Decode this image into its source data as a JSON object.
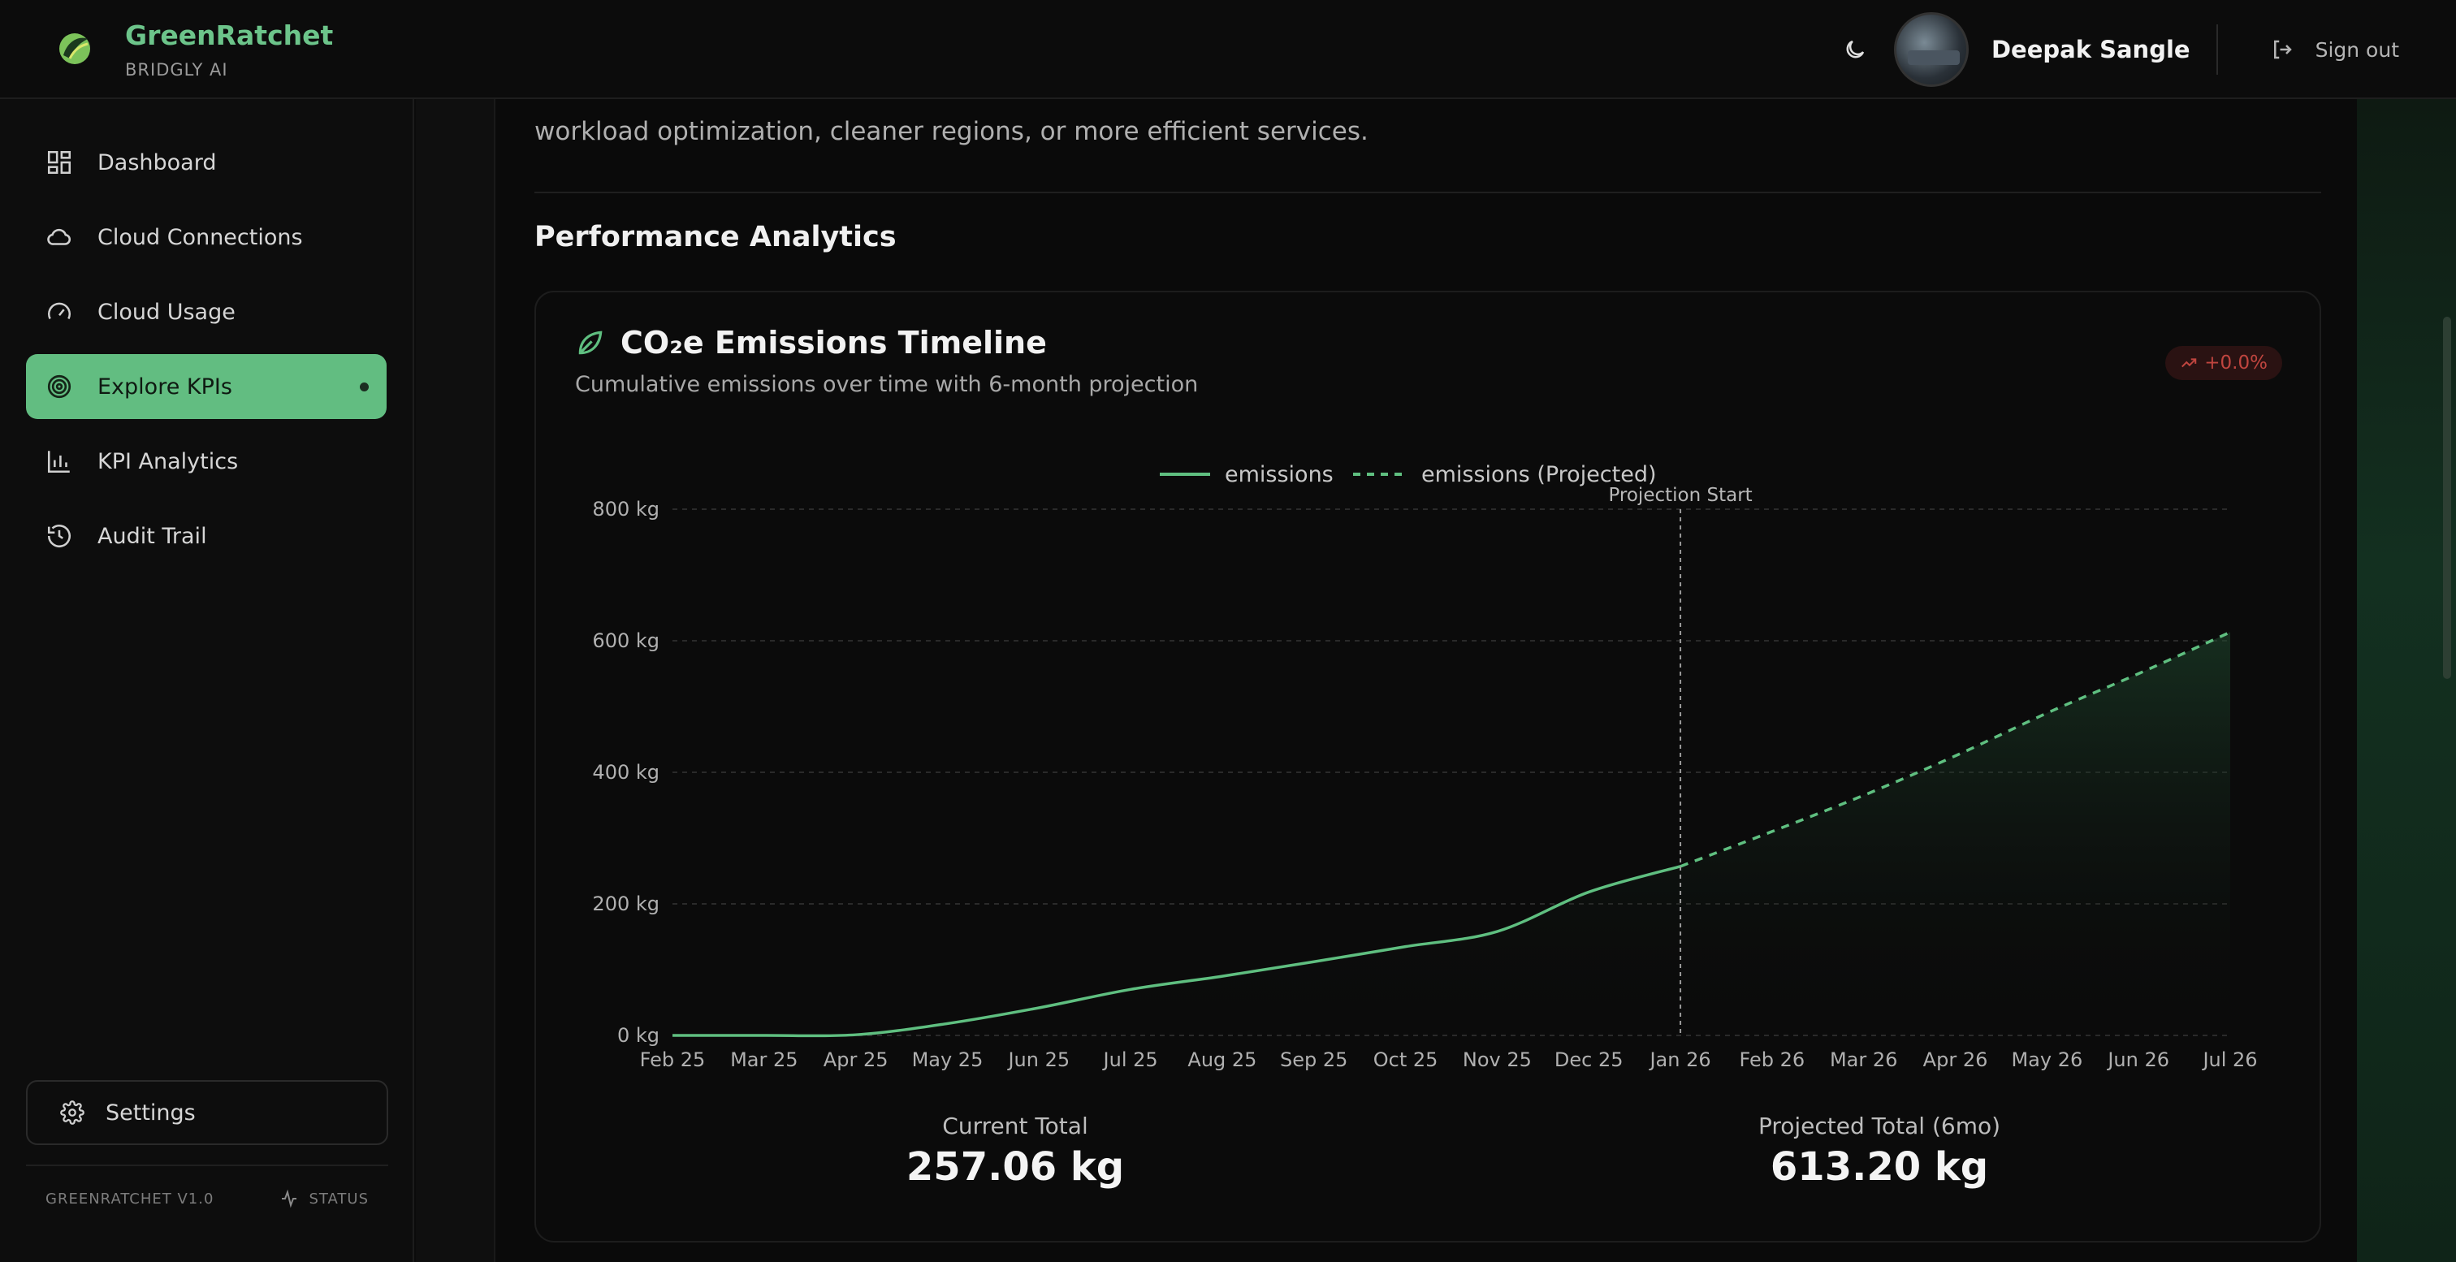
{
  "header": {
    "brand_name": "GreenRatchet",
    "brand_sub": "BRIDGLY AI",
    "user_name": "Deepak Sangle",
    "signout_label": "Sign out"
  },
  "sidebar": {
    "items": [
      {
        "label": "Dashboard",
        "icon": "dashboard-icon"
      },
      {
        "label": "Cloud Connections",
        "icon": "cloud-icon"
      },
      {
        "label": "Cloud Usage",
        "icon": "gauge-icon"
      },
      {
        "label": "Explore KPIs",
        "icon": "target-icon",
        "active": true
      },
      {
        "label": "KPI Analytics",
        "icon": "bar-chart-icon"
      },
      {
        "label": "Audit Trail",
        "icon": "history-icon"
      }
    ],
    "settings_label": "Settings",
    "version": "GREENRATCHET V1.0",
    "status_label": "STATUS"
  },
  "main": {
    "intro_text": "workload optimization, cleaner regions, or more efficient services.",
    "section_title": "Performance Analytics",
    "card": {
      "title": "CO₂e Emissions Timeline",
      "subtitle": "Cumulative emissions over time with 6-month projection",
      "trend_badge": "+0.0%",
      "current_total_label": "Current Total",
      "current_total_value": "257.06 kg",
      "projected_total_label": "Projected Total (6mo)",
      "projected_total_value": "613.20 kg"
    }
  },
  "colors": {
    "accent": "#62bd81",
    "line": "#5fbf80",
    "trend_negative": "#c0453f"
  },
  "chart_data": {
    "type": "line",
    "title": "CO₂e Emissions Timeline",
    "categories": [
      "Feb 25",
      "Mar 25",
      "Apr 25",
      "May 25",
      "Jun 25",
      "Jul 25",
      "Aug 25",
      "Sep 25",
      "Oct 25",
      "Nov 25",
      "Dec 25",
      "Jan 26",
      "Feb 26",
      "Mar 26",
      "Apr 26",
      "May 26",
      "Jun 26",
      "Jul 26"
    ],
    "series": [
      {
        "name": "emissions",
        "values": [
          0,
          0,
          1,
          18,
          42,
          70,
          90,
          112,
          135,
          158,
          218,
          257,
          null,
          null,
          null,
          null,
          null,
          null
        ]
      },
      {
        "name": "emissions (Projected)",
        "values": [
          null,
          null,
          null,
          null,
          null,
          null,
          null,
          null,
          null,
          null,
          null,
          257,
          310,
          365,
          425,
          490,
          550,
          613
        ]
      }
    ],
    "y_ticks": [
      "0 kg",
      "200 kg",
      "400 kg",
      "600 kg",
      "800 kg"
    ],
    "ylim": [
      0,
      800
    ],
    "annotation": "Projection Start",
    "annotation_x": "Jan 26",
    "grid": true,
    "legend": "top-center"
  }
}
